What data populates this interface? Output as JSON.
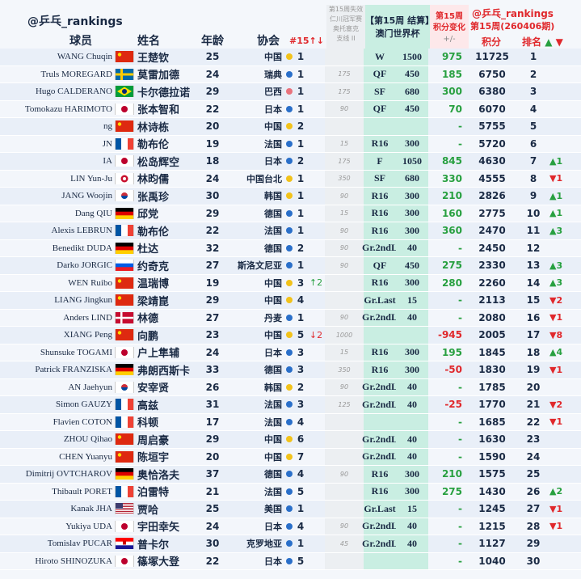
{
  "header": {
    "handle": "@乒乓_rankings",
    "player": "球员",
    "name": "姓名",
    "age": "年龄",
    "assoc": "协会",
    "rank15": "#15↑↓",
    "expire": [
      "第15周失效",
      "仁川冠军赛",
      "奥托塞克",
      "支线 II"
    ],
    "result": [
      "【第15周 结算】",
      "澳门世界杯"
    ],
    "change": [
      "第15周",
      "积分变化",
      "+/-"
    ],
    "points_head": [
      "@乒乓_rankings",
      "第15周(260406期)"
    ],
    "points": "积分",
    "rank": {
      "label": "排名",
      "up": "▲",
      "down": "▼"
    }
  },
  "table": {
    "rows": [
      {
        "player": "WANG Chuqin",
        "name": "王楚钦",
        "age": 25,
        "assoc": "中国",
        "dot": "#f2c21a",
        "rank15": 1,
        "result": "W",
        "pts": 1500,
        "change": 975,
        "points": 11725,
        "rank": 1
      },
      {
        "player": "Truls MOREGARD",
        "name": "莫雷加德",
        "age": 24,
        "assoc": "瑞典",
        "dot": "#2a6fc9",
        "rank15": 1,
        "expire": 175,
        "result": "QF",
        "pts": 450,
        "change": 185,
        "points": 6750,
        "rank": 2
      },
      {
        "player": "Hugo CALDERANO",
        "name": "卡尔德拉诺",
        "age": 29,
        "assoc": "巴西",
        "dot": "#e9737d",
        "rank15": 1,
        "expire": 175,
        "result": "SF",
        "pts": 680,
        "change": 300,
        "points": 6380,
        "rank": 3
      },
      {
        "player": "Tomokazu HARIMOTO",
        "name": "张本智和",
        "age": 22,
        "assoc": "日本",
        "dot": "#2a6fc9",
        "rank15": 1,
        "expire": 90,
        "result": "QF",
        "pts": 450,
        "change": 70,
        "points": 6070,
        "rank": 4
      },
      {
        "player": "ng",
        "name": "林诗栋",
        "age": 20,
        "assoc": "中国",
        "dot": "#f2c21a",
        "rank15": 2,
        "change": "-",
        "points": 5755,
        "rank": 5
      },
      {
        "player": "JN",
        "name": "勒布伦",
        "age": 19,
        "assoc": "法国",
        "dot": "#2a6fc9",
        "rank15": 1,
        "expire": 15,
        "result": "R16",
        "pts": 300,
        "change": "-",
        "points": 5720,
        "rank": 6
      },
      {
        "player": "IA",
        "name": "松岛辉空",
        "age": 18,
        "assoc": "日本",
        "dot": "#2a6fc9",
        "rank15": 2,
        "expire": 175,
        "result": "F",
        "pts": 1050,
        "change": 845,
        "points": 4630,
        "rank": 7,
        "rank_up": "▲1"
      },
      {
        "player": "LIN Yun-Ju",
        "name": "林昀儒",
        "age": 24,
        "assoc": "中国台北",
        "dot": "#f2c21a",
        "rank15": 1,
        "expire": 350,
        "result": "SF",
        "pts": 680,
        "change": 330,
        "points": 4555,
        "rank": 8,
        "rank_down": "▼1"
      },
      {
        "player": "JANG Woojin",
        "name": "张禹珍",
        "age": 30,
        "assoc": "韩国",
        "dot": "#f2c21a",
        "rank15": 1,
        "expire": 90,
        "result": "R16",
        "pts": 300,
        "change": 210,
        "points": 2826,
        "rank": 9,
        "rank_up": "▲1"
      },
      {
        "player": "Dang QIU",
        "name": "邱党",
        "age": 29,
        "assoc": "德国",
        "dot": "#2a6fc9",
        "rank15": 1,
        "expire": 15,
        "result": "R16",
        "pts": 300,
        "change": 160,
        "points": 2775,
        "rank": 10,
        "rank_up": "▲1"
      },
      {
        "player": "Alexis LEBRUN",
        "name": "勒布伦",
        "age": 22,
        "assoc": "法国",
        "dot": "#2a6fc9",
        "rank15": 1,
        "expire": 90,
        "result": "R16",
        "pts": 300,
        "change": 360,
        "points": 2470,
        "rank": 11,
        "rank_up": "▲3"
      },
      {
        "player": "Benedikt DUDA",
        "name": "杜达",
        "age": 32,
        "assoc": "德国",
        "dot": "#2a6fc9",
        "rank15": 2,
        "expire": 90,
        "result": "Gr.2ndL",
        "pts": 40,
        "change": "-",
        "points": 2450,
        "rank": 12
      },
      {
        "player": "Darko JORGIC",
        "name": "约奇克",
        "age": 27,
        "assoc": "斯洛文尼亚",
        "dot": "#2a6fc9",
        "rank15": 1,
        "expire": 90,
        "result": "QF",
        "pts": 450,
        "change": 275,
        "points": 2330,
        "rank": 13,
        "rank_up": "▲3"
      },
      {
        "player": "WEN Ruibo",
        "name": "温瑞博",
        "age": 19,
        "assoc": "中国",
        "dot": "#f2c21a",
        "rank15": 3,
        "move_up": "↑2",
        "result": "R16",
        "pts": 300,
        "change": 280,
        "points": 2260,
        "rank": 14,
        "rank_up": "▲3"
      },
      {
        "player": "LIANG Jingkun",
        "name": "梁靖崑",
        "age": 29,
        "assoc": "中国",
        "dot": "#f2c21a",
        "rank15": 4,
        "result": "Gr.Last",
        "pts": 15,
        "change": "-",
        "points": 2113,
        "rank": 15,
        "rank_down": "▼2"
      },
      {
        "player": "Anders LIND",
        "name": "林德",
        "age": 27,
        "assoc": "丹麦",
        "dot": "#2a6fc9",
        "rank15": 1,
        "expire": 90,
        "result": "Gr.2ndL",
        "pts": 40,
        "change": "-",
        "points": 2080,
        "rank": 16,
        "rank_down": "▼1"
      },
      {
        "player": "XIANG Peng",
        "name": "向鹏",
        "age": 23,
        "assoc": "中国",
        "dot": "#f2c21a",
        "rank15": 5,
        "move_down": "↓2",
        "expire": 1000,
        "change": -945,
        "points": 2005,
        "rank": 17,
        "rank_down": "▼8"
      },
      {
        "player": "Shunsuke TOGAMI",
        "name": "户上隼辅",
        "age": 24,
        "assoc": "日本",
        "dot": "#2a6fc9",
        "rank15": 3,
        "expire": 15,
        "result": "R16",
        "pts": 300,
        "change": 195,
        "points": 1845,
        "rank": 18,
        "rank_up": "▲4"
      },
      {
        "player": "Patrick FRANZISKA",
        "name": "弗朗西斯卡",
        "age": 33,
        "assoc": "德国",
        "dot": "#2a6fc9",
        "rank15": 3,
        "expire": 350,
        "result": "R16",
        "pts": 300,
        "change": -50,
        "points": 1830,
        "rank": 19,
        "rank_down": "▼1"
      },
      {
        "player": "AN Jaehyun",
        "name": "安宰贤",
        "age": 26,
        "assoc": "韩国",
        "dot": "#f2c21a",
        "rank15": 2,
        "expire": 90,
        "result": "Gr.2ndL",
        "pts": 40,
        "change": "-",
        "points": 1785,
        "rank": 20
      },
      {
        "player": "Simon GAUZY",
        "name": "高兹",
        "age": 31,
        "assoc": "法国",
        "dot": "#2a6fc9",
        "rank15": 3,
        "expire": 125,
        "result": "Gr.2ndL",
        "pts": 40,
        "change": -25,
        "points": 1770,
        "rank": 21,
        "rank_down": "▼2"
      },
      {
        "player": "Flavien COTON",
        "name": "科顿",
        "age": 17,
        "assoc": "法国",
        "dot": "#2a6fc9",
        "rank15": 4,
        "change": "-",
        "points": 1685,
        "rank": 22,
        "rank_down": "▼1"
      },
      {
        "player": "ZHOU Qihao",
        "name": "周启豪",
        "age": 29,
        "assoc": "中国",
        "dot": "#f2c21a",
        "rank15": 6,
        "result": "Gr.2ndL",
        "pts": 40,
        "change": "-",
        "points": 1630,
        "rank": 23
      },
      {
        "player": "CHEN Yuanyu",
        "name": "陈垣宇",
        "age": 20,
        "assoc": "中国",
        "dot": "#f2c21a",
        "rank15": 7,
        "result": "Gr.2ndL",
        "pts": 40,
        "change": "-",
        "points": 1590,
        "rank": 24
      },
      {
        "player": "Dimitrij OVTCHAROV",
        "name": "奥恰洛夫",
        "age": 37,
        "assoc": "德国",
        "dot": "#2a6fc9",
        "rank15": 4,
        "expire": 90,
        "result": "R16",
        "pts": 300,
        "change": 210,
        "points": 1575,
        "rank": 25
      },
      {
        "player": "Thibault PORET",
        "name": "泊雷特",
        "age": 21,
        "assoc": "法国",
        "dot": "#2a6fc9",
        "rank15": 5,
        "result": "R16",
        "pts": 300,
        "change": 275,
        "points": 1430,
        "rank": 26,
        "rank_up": "▲2"
      },
      {
        "player": "Kanak JHA",
        "name": "贾哈",
        "age": 25,
        "assoc": "美国",
        "dot": "#2a6fc9",
        "rank15": 1,
        "result": "Gr.Last",
        "pts": 15,
        "change": "-",
        "points": 1245,
        "rank": 27,
        "rank_down": "▼1"
      },
      {
        "player": "Yukiya UDA",
        "name": "宇田幸矢",
        "age": 24,
        "assoc": "日本",
        "dot": "#2a6fc9",
        "rank15": 4,
        "expire": 90,
        "result": "Gr.2ndL",
        "pts": 40,
        "change": "-",
        "points": 1215,
        "rank": 28,
        "rank_down": "▼1"
      },
      {
        "player": "Tomislav PUCAR",
        "name": "普卡尔",
        "age": 30,
        "assoc": "克罗地亚",
        "dot": "#2a6fc9",
        "rank15": 1,
        "expire": 45,
        "result": "Gr.2ndL",
        "pts": 40,
        "change": "-",
        "points": 1127,
        "rank": 29
      },
      {
        "player": "Hiroto SHINOZUKA",
        "name": "篠塚大登",
        "age": 22,
        "assoc": "日本",
        "dot": "#2a6fc9",
        "rank15": 5,
        "change": "-",
        "points": 1040,
        "rank": 30
      }
    ]
  }
}
